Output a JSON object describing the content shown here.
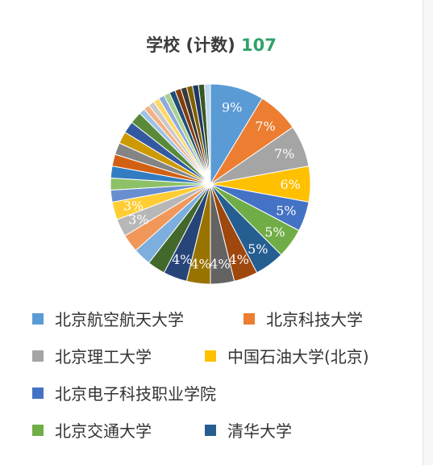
{
  "chart_data": {
    "type": "pie",
    "title": "学校 (计数)",
    "total": "107",
    "slices": [
      {
        "name": "北京航空航天大学",
        "value": 9,
        "label": "9%",
        "color": "#5B9BD5"
      },
      {
        "name": "北京科技大学",
        "value": 7,
        "label": "7%",
        "color": "#ED7D31"
      },
      {
        "name": "北京理工大学",
        "value": 7,
        "label": "7%",
        "color": "#A5A5A5"
      },
      {
        "name": "中国石油大学(北京)",
        "value": 6,
        "label": "6%",
        "color": "#FFC000"
      },
      {
        "name": "北京电子科技职业学院",
        "value": 5,
        "label": "5%",
        "color": "#4472C4"
      },
      {
        "name": "北京交通大学",
        "value": 5,
        "label": "5%",
        "color": "#70AD47"
      },
      {
        "name": "清华大学",
        "value": 5,
        "label": "5%",
        "color": "#255E91"
      },
      {
        "name": "",
        "value": 4,
        "label": "4%",
        "color": "#9E480E"
      },
      {
        "name": "",
        "value": 4,
        "label": "4%",
        "color": "#636363"
      },
      {
        "name": "",
        "value": 4,
        "label": "4%",
        "color": "#997300"
      },
      {
        "name": "",
        "value": 4,
        "label": "4%",
        "color": "#264478"
      },
      {
        "name": "",
        "value": 3,
        "label": "",
        "color": "#43682B"
      },
      {
        "name": "",
        "value": 3,
        "label": "",
        "color": "#7CAFDD"
      },
      {
        "name": "",
        "value": 3,
        "label": "",
        "color": "#F1975A"
      },
      {
        "name": "",
        "value": 3,
        "label": "3%",
        "color": "#B7B7B7"
      },
      {
        "name": "",
        "value": 3,
        "label": "3%",
        "color": "#FFCD33"
      },
      {
        "name": "",
        "value": 2,
        "label": "",
        "color": "#698ED0"
      },
      {
        "name": "",
        "value": 2,
        "label": "",
        "color": "#8CC168"
      },
      {
        "name": "",
        "value": 2,
        "label": "",
        "color": "#327DC2"
      },
      {
        "name": "",
        "value": 2,
        "label": "",
        "color": "#D26012"
      },
      {
        "name": "",
        "value": 2,
        "label": "",
        "color": "#848484"
      },
      {
        "name": "",
        "value": 2,
        "label": "",
        "color": "#CC9A00"
      },
      {
        "name": "",
        "value": 2,
        "label": "",
        "color": "#335AA1"
      },
      {
        "name": "",
        "value": 2,
        "label": "",
        "color": "#5A8A39"
      },
      {
        "name": "",
        "value": 1,
        "label": "",
        "color": "#9DC3E6"
      },
      {
        "name": "",
        "value": 1,
        "label": "",
        "color": "#F4B183"
      },
      {
        "name": "",
        "value": 1,
        "label": "",
        "color": "#C9C9C9"
      },
      {
        "name": "",
        "value": 1,
        "label": "",
        "color": "#FFD966"
      },
      {
        "name": "",
        "value": 1,
        "label": "",
        "color": "#8FAADC"
      },
      {
        "name": "",
        "value": 1,
        "label": "",
        "color": "#A9D18E"
      },
      {
        "name": "",
        "value": 1,
        "label": "",
        "color": "#1F4E79"
      },
      {
        "name": "",
        "value": 1,
        "label": "",
        "color": "#843C0C"
      },
      {
        "name": "",
        "value": 1,
        "label": "",
        "color": "#3B3838"
      },
      {
        "name": "",
        "value": 1,
        "label": "",
        "color": "#7F6000"
      },
      {
        "name": "",
        "value": 1,
        "label": "",
        "color": "#203864"
      },
      {
        "name": "",
        "value": 1,
        "label": "",
        "color": "#385723"
      },
      {
        "name": "",
        "value": 1,
        "label": "",
        "color": "#BDD7EE"
      }
    ],
    "legend_position": "bottom"
  }
}
